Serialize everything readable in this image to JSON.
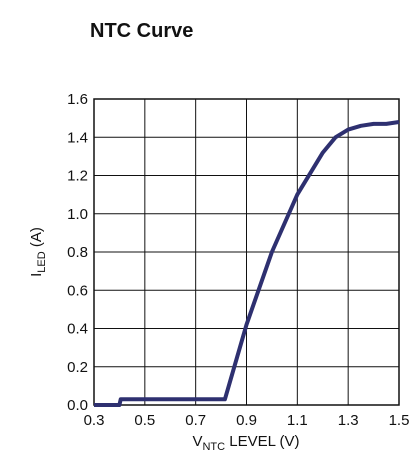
{
  "chart_data": {
    "type": "line",
    "title": "NTC Curve",
    "xlabel": {
      "base": "V",
      "sub": "NTC",
      "rest": " LEVEL (V)"
    },
    "ylabel": {
      "base": "I",
      "sub": "LED",
      "rest": " (A)"
    },
    "xlim": [
      0.3,
      1.5
    ],
    "ylim": [
      0.0,
      1.6
    ],
    "x_ticks": [
      "0.3",
      "0.5",
      "0.7",
      "0.9",
      "1.1",
      "1.3",
      "1.5"
    ],
    "y_ticks": [
      "0.0",
      "0.2",
      "0.4",
      "0.6",
      "0.8",
      "1.0",
      "1.2",
      "1.4",
      "1.6"
    ],
    "grid": true,
    "series": [
      {
        "color": "#2e3070",
        "x": [
          0.3,
          0.4,
          0.405,
          0.8,
          0.815,
          0.9,
          1.0,
          1.1,
          1.2,
          1.25,
          1.3,
          1.35,
          1.4,
          1.45,
          1.5
        ],
        "y": [
          0.0,
          0.0,
          0.03,
          0.03,
          0.03,
          0.42,
          0.8,
          1.1,
          1.32,
          1.4,
          1.44,
          1.46,
          1.47,
          1.47,
          1.48
        ]
      }
    ]
  }
}
